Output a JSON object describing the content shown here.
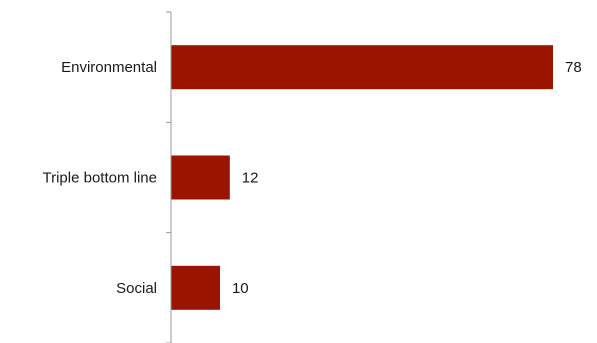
{
  "chart_data": {
    "type": "bar",
    "orientation": "horizontal",
    "categories": [
      "Environmental",
      "Triple bottom line",
      "Social"
    ],
    "values": [
      78,
      12,
      10
    ],
    "value_labels": [
      "78",
      "12",
      "10"
    ],
    "title": "",
    "xlabel": "",
    "ylabel": "",
    "xlim": [
      0,
      78
    ],
    "grid": false,
    "legend": "none",
    "colors": {
      "bar": "#9b1400",
      "axis": "#9a9a9a",
      "text": "#1a1a1a"
    }
  }
}
